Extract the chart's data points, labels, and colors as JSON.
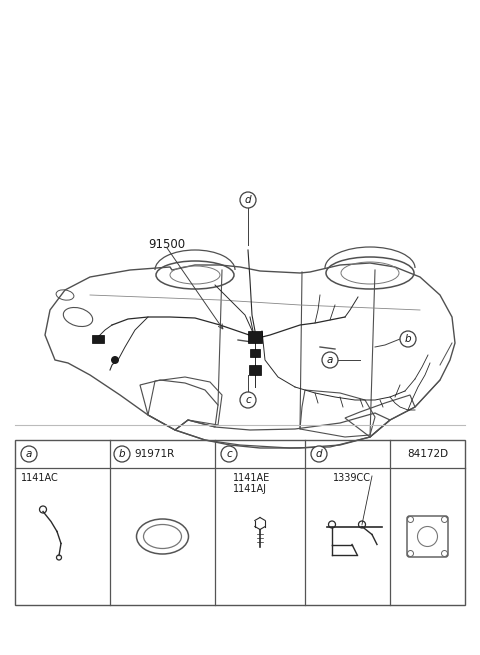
{
  "bg_color": "#ffffff",
  "part_label_91500": "91500",
  "callouts": [
    "a",
    "b",
    "c",
    "d"
  ],
  "part_codes": {
    "a": "1141AC",
    "b_header": "91971R",
    "c1": "1141AE",
    "c2": "1141AJ",
    "d": "1339CC",
    "e_header": "84172D"
  },
  "line_color": "#404040",
  "callout_circle_color": "#404040",
  "table_line_color": "#555555",
  "font_color": "#1a1a1a",
  "wire_color": "#2a2a2a",
  "car_color": "#505050"
}
